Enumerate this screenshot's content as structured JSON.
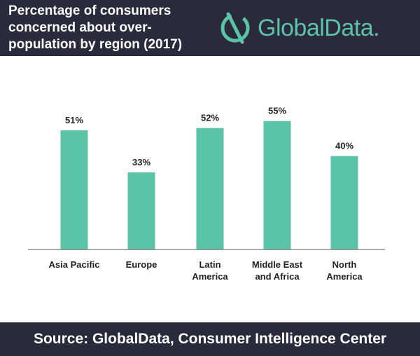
{
  "header": {
    "title": "Percentage of consumers concerned about over-population by region (2017)",
    "brand": "GlobalData."
  },
  "footer": {
    "source": "Source: GlobalData, Consumer Intelligence Center"
  },
  "colors": {
    "bar": "#5bc4a7",
    "header_bg": "#2a2a3c",
    "axis": "#555555"
  },
  "chart_data": {
    "type": "bar",
    "title": "Percentage of consumers concerned about over-population by region (2017)",
    "categories": [
      [
        "Asia Pacific"
      ],
      [
        "Europe"
      ],
      [
        "Latin",
        "America"
      ],
      [
        "Middle East",
        "and Africa"
      ],
      [
        "North",
        "America"
      ]
    ],
    "values": [
      51,
      33,
      52,
      55,
      40
    ],
    "value_labels": [
      "51%",
      "33%",
      "52%",
      "55%",
      "40%"
    ],
    "ylim": [
      0,
      60
    ],
    "xlabel": "",
    "ylabel": "",
    "grid": false
  }
}
